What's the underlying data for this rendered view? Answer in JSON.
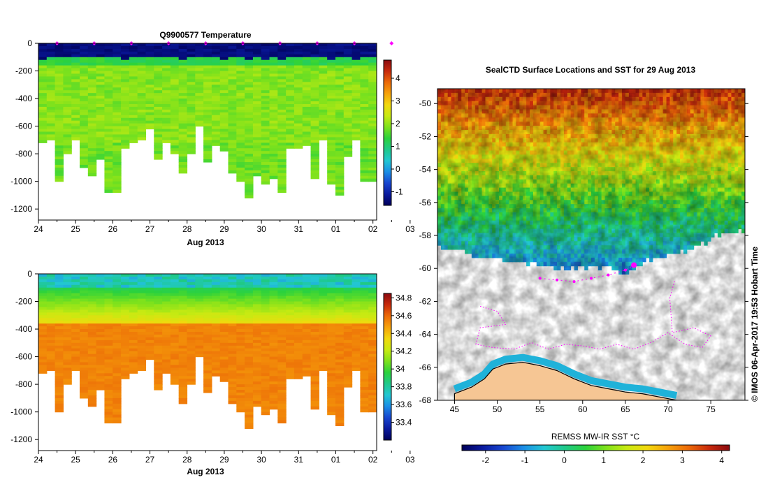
{
  "colors": {
    "ramp": [
      "#00005a",
      "#0a1a9e",
      "#1846d0",
      "#1b8ee6",
      "#22c7d2",
      "#1fc98a",
      "#2bd23c",
      "#7ee21c",
      "#c8ea12",
      "#f2d80e",
      "#f6a20a",
      "#ec6a08",
      "#c82a0c",
      "#8a0a10"
    ],
    "land": "#f6c694",
    "path": "#ff00ff",
    "no_data": "#ffffff"
  },
  "chart_data": [
    {
      "id": "temperature-section",
      "type": "heatmap",
      "title": "Q9900577  Temperature",
      "xlabel": "Aug 2013",
      "x_ticks": [
        "24",
        "25",
        "26",
        "27",
        "28",
        "29",
        "30",
        "31",
        "01",
        "02",
        "03"
      ],
      "xlim": [
        0,
        9.1
      ],
      "ylim": [
        -1280,
        0
      ],
      "y_ticks": [
        0,
        -200,
        -400,
        -600,
        -800,
        -1000,
        -1200
      ],
      "colorbar": {
        "min": -1.6,
        "max": 4.8,
        "ticks": [
          4,
          3,
          2,
          1,
          0,
          -1
        ]
      },
      "profile_marks": [
        0.95,
        1.95,
        2.95,
        3.95,
        4.95,
        5.95,
        6.95,
        7.95,
        8.95,
        9.95
      ],
      "surface_layer": {
        "value": -1.5,
        "depth": -95
      },
      "thermocline": {
        "value": 1.1,
        "depth": -150
      },
      "deep_value": 1.9,
      "profile_depths": [
        -720,
        -690,
        -990,
        -800,
        -700,
        -890,
        -960,
        -830,
        -1070,
        -1080,
        -760,
        -720,
        -700,
        -620,
        -840,
        -720,
        -800,
        -930,
        -800,
        -590,
        -860,
        -730,
        -770,
        -940,
        -1000,
        -1120,
        -950,
        -1010,
        -970,
        -1070,
        -760,
        -750,
        -730,
        -970,
        -700,
        -1010,
        -1100,
        -810,
        -700,
        -990,
        -990
      ]
    },
    {
      "id": "salinity-section",
      "type": "heatmap",
      "title": "",
      "xlabel": "Aug 2013",
      "x_ticks": [
        "24",
        "25",
        "26",
        "27",
        "28",
        "29",
        "30",
        "31",
        "01",
        "02",
        "03"
      ],
      "xlim": [
        0,
        9.1
      ],
      "ylim": [
        -1280,
        0
      ],
      "y_ticks": [
        0,
        -200,
        -400,
        -600,
        -800,
        -1000,
        -1200
      ],
      "colorbar": {
        "min": 33.2,
        "max": 34.85,
        "ticks": [
          34.8,
          34.6,
          34.4,
          34.2,
          34,
          33.8,
          33.6,
          33.4
        ]
      },
      "surface_value": 33.75,
      "halocline": {
        "from": 33.9,
        "to": 34.3,
        "depth_top": -90,
        "depth_bottom": -350
      },
      "deep_value": 34.55,
      "profile_depths": [
        -720,
        -690,
        -990,
        -800,
        -700,
        -890,
        -960,
        -830,
        -1070,
        -1080,
        -760,
        -720,
        -700,
        -620,
        -840,
        -720,
        -800,
        -930,
        -800,
        -590,
        -860,
        -730,
        -770,
        -940,
        -1000,
        -1120,
        -950,
        -1010,
        -970,
        -1070,
        -760,
        -750,
        -730,
        -970,
        -700,
        -1010,
        -1100,
        -810,
        -700,
        -990,
        -990
      ]
    },
    {
      "id": "sst-map",
      "type": "heatmap",
      "title": "SealCTD Surface Locations and SST for 29 Aug 2013",
      "x_ticks": [
        45,
        50,
        55,
        60,
        65,
        70,
        75
      ],
      "y_ticks": [
        -50,
        -52,
        -54,
        -56,
        -58,
        -60,
        -62,
        -64,
        -66,
        -68
      ],
      "xlim": [
        43,
        79
      ],
      "ylim": [
        -68,
        -49.1
      ],
      "colorbar": {
        "label": "REMSS MW-IR SST °C",
        "min": -2.6,
        "max": 4.2,
        "ticks": [
          -2,
          -1,
          0,
          1,
          2,
          3,
          4
        ]
      },
      "ice_edge": [
        [
          43,
          -58.5
        ],
        [
          45,
          -58.7
        ],
        [
          48,
          -59.2
        ],
        [
          52,
          -59.5
        ],
        [
          55,
          -59.7
        ],
        [
          58,
          -60.0
        ],
        [
          60,
          -59.8
        ],
        [
          63,
          -59.7
        ],
        [
          64.5,
          -60.4
        ],
        [
          66,
          -59.8
        ],
        [
          68,
          -59.3
        ],
        [
          71,
          -58.9
        ],
        [
          74,
          -58.3
        ],
        [
          77,
          -57.6
        ],
        [
          79,
          -57.5
        ]
      ],
      "seal_track": [
        [
          55,
          -60.6
        ],
        [
          57,
          -60.7
        ],
        [
          59,
          -60.8
        ],
        [
          61,
          -60.6
        ],
        [
          63,
          -60.4
        ],
        [
          65,
          -60.1
        ],
        [
          66,
          -59.8
        ]
      ],
      "seal_wander": [
        [
          48,
          -62.3
        ],
        [
          50,
          -62.6
        ],
        [
          51,
          -63.4
        ],
        [
          48,
          -63.6
        ],
        [
          47.5,
          -64.6
        ],
        [
          49.5,
          -64.8
        ],
        [
          52,
          -64.9
        ],
        [
          54,
          -64.5
        ],
        [
          56,
          -64.9
        ],
        [
          58,
          -64.6
        ],
        [
          60,
          -64.7
        ],
        [
          62,
          -64.9
        ],
        [
          64,
          -64.6
        ],
        [
          66,
          -64.9
        ],
        [
          68,
          -64.5
        ],
        [
          70,
          -63.9
        ],
        [
          72,
          -64.6
        ],
        [
          74,
          -64.8
        ],
        [
          75,
          -64.1
        ],
        [
          73,
          -63.6
        ],
        [
          70.5,
          -63.9
        ],
        [
          70.2,
          -61.8
        ],
        [
          70.8,
          -60.7
        ]
      ],
      "coast": [
        [
          45,
          -67.6
        ],
        [
          47,
          -67.2
        ],
        [
          48.5,
          -66.7
        ],
        [
          49.5,
          -66.1
        ],
        [
          51,
          -65.8
        ],
        [
          53,
          -65.7
        ],
        [
          55,
          -65.9
        ],
        [
          57,
          -66.2
        ],
        [
          59,
          -66.7
        ],
        [
          61,
          -67.1
        ],
        [
          63,
          -67.3
        ],
        [
          65,
          -67.5
        ],
        [
          67,
          -67.6
        ],
        [
          69,
          -67.8
        ],
        [
          71,
          -68.0
        ]
      ],
      "footer": "© IMOS 06-Apr-2017 19:53 Hobart Time"
    }
  ]
}
